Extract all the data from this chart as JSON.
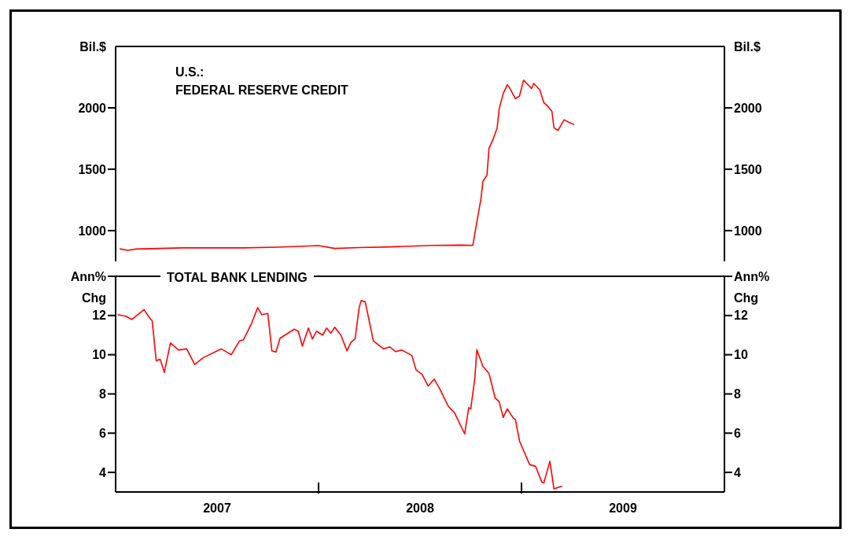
{
  "chart_data": [
    {
      "type": "line",
      "title": "U.S.:\nFEDERAL RESERVE CREDIT",
      "ylabel": "Bil.$",
      "y2label": "Bil.$",
      "color": "#ff0000",
      "marker": "none",
      "tick_labels": "y",
      "x": [
        2007.02,
        2007.06,
        2007.1,
        2007.33,
        2007.63,
        2007.8,
        2008.0,
        2008.08,
        2008.2,
        2008.36,
        2008.56,
        2008.7,
        2008.76,
        2008.78,
        2008.8,
        2008.81,
        2008.83,
        2008.84,
        2008.86,
        2008.88,
        2008.89,
        2008.91,
        2008.93,
        2008.94,
        2008.97,
        2008.99,
        2009.01,
        2009.05,
        2009.06,
        2009.09,
        2009.11,
        2009.13,
        2009.15,
        2009.16,
        2009.18,
        2009.21,
        2009.23,
        2009.26
      ],
      "values": [
        852,
        840,
        850,
        860,
        860,
        865,
        878,
        855,
        862,
        868,
        880,
        882,
        880,
        1070,
        1257,
        1402,
        1453,
        1671,
        1743,
        1837,
        1991,
        2116,
        2188,
        2168,
        2075,
        2095,
        2225,
        2157,
        2199,
        2147,
        2043,
        2012,
        1971,
        1837,
        1816,
        1903,
        1885,
        1863
      ],
      "xlim": [
        2007,
        2010
      ],
      "ylim": [
        750,
        2500
      ],
      "yticks": [
        1000,
        1500,
        2000
      ],
      "y2lim": [
        750,
        2500
      ],
      "y2ticks": [
        1000,
        1500,
        2000
      ]
    },
    {
      "type": "line",
      "title": "TOTAL BANK LENDING",
      "ylabel": "Ann%\nChg",
      "y2label": "Ann%\nChg",
      "color": "#ff0000",
      "marker": "none",
      "x": [
        2007.01,
        2007.05,
        2007.08,
        2007.14,
        2007.17,
        2007.18,
        2007.2,
        2007.22,
        2007.24,
        2007.27,
        2007.31,
        2007.35,
        2007.39,
        2007.43,
        2007.52,
        2007.57,
        2007.61,
        2007.63,
        2007.67,
        2007.7,
        2007.72,
        2007.75,
        2007.77,
        2007.79,
        2007.81,
        2007.88,
        2007.9,
        2007.92,
        2007.95,
        2007.97,
        2007.99,
        2008.02,
        2008.04,
        2008.06,
        2008.08,
        2008.11,
        2008.14,
        2008.16,
        2008.18,
        2008.2,
        2008.21,
        2008.23,
        2008.27,
        2008.32,
        2008.35,
        2008.38,
        2008.41,
        2008.46,
        2008.48,
        2008.51,
        2008.54,
        2008.57,
        2008.6,
        2008.64,
        2008.67,
        2008.72,
        2008.74,
        2008.75,
        2008.77,
        2008.78,
        2008.81,
        2008.84,
        2008.87,
        2008.89,
        2008.91,
        2008.93,
        2008.96,
        2008.97,
        2008.99,
        2009.04,
        2009.07,
        2009.1,
        2009.11,
        2009.14,
        2009.16,
        2009.2
      ],
      "values": [
        12.04,
        11.96,
        11.8,
        12.3,
        11.84,
        11.74,
        9.7,
        9.76,
        9.1,
        10.6,
        10.24,
        10.3,
        9.5,
        9.84,
        10.3,
        10.0,
        10.7,
        10.76,
        11.6,
        12.4,
        12.04,
        12.1,
        10.2,
        10.14,
        10.84,
        11.3,
        11.2,
        10.44,
        11.36,
        10.8,
        11.2,
        11.0,
        11.36,
        11.1,
        11.4,
        11.0,
        10.2,
        10.64,
        10.8,
        12.4,
        12.76,
        12.7,
        10.7,
        10.3,
        10.4,
        10.16,
        10.24,
        9.96,
        9.24,
        9.0,
        8.4,
        8.76,
        8.2,
        7.36,
        7.04,
        5.96,
        7.3,
        7.24,
        8.8,
        10.26,
        9.4,
        9.04,
        7.8,
        7.6,
        6.8,
        7.24,
        6.76,
        6.7,
        5.6,
        4.4,
        4.3,
        3.5,
        3.46,
        4.56,
        3.16,
        3.3
      ],
      "xlim": [
        2007,
        2010
      ],
      "xticks": [
        {
          "value": 2007.5,
          "label": "2007"
        },
        {
          "value": 2008,
          "label": null
        },
        {
          "value": 2008.5,
          "label": "2008"
        },
        {
          "value": 2009,
          "label": null
        },
        {
          "value": 2009.5,
          "label": "2009"
        }
      ],
      "ylim": [
        3,
        14
      ],
      "yticks": [
        4,
        6,
        8,
        10,
        12,
        {
          "value": 14,
          "label": null
        }
      ],
      "y2lim": [
        3,
        14
      ],
      "y2ticks": [
        4,
        6,
        8,
        10,
        12,
        {
          "value": 14,
          "label": null
        }
      ]
    }
  ]
}
